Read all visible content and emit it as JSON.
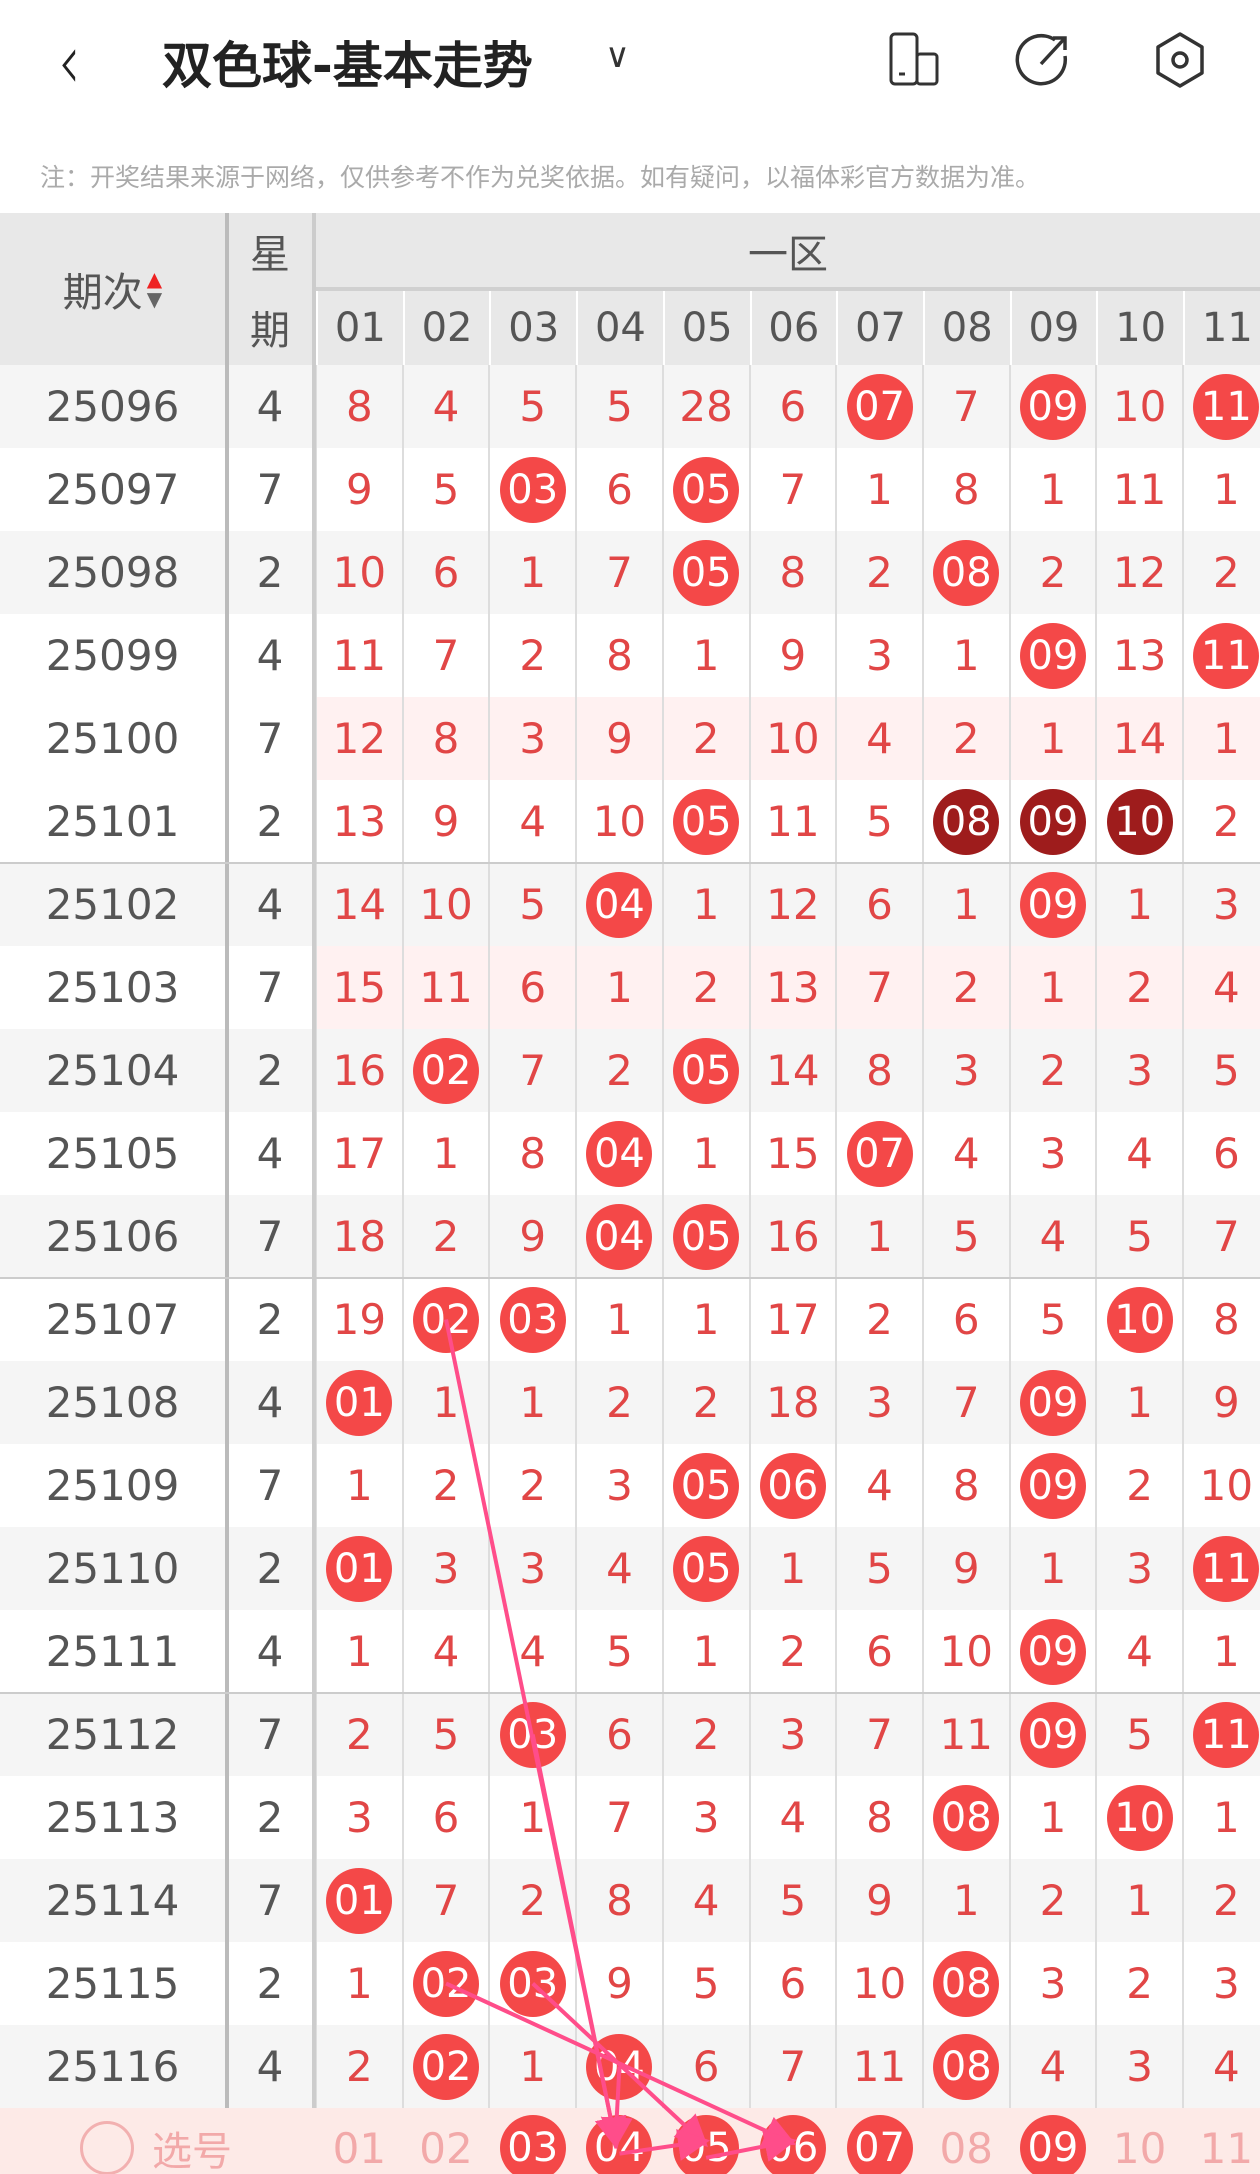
{
  "header": {
    "title": "双色球-基本走势",
    "back": "‹",
    "dropdown": "∨",
    "icons": [
      "device-icon",
      "share-icon",
      "settings-icon"
    ]
  },
  "note": "注：开奖结果来源于网络，仅供参考不作为兑奖依据。如有疑问，以福体彩官方数据为准。",
  "table": {
    "col_period": "期次",
    "col_week_1": "星",
    "col_week_2": "期",
    "zone": "一区",
    "numbers": [
      "01",
      "02",
      "03",
      "04",
      "05",
      "06",
      "07",
      "08",
      "09",
      "10",
      "11"
    ],
    "rows": [
      {
        "period": "25096",
        "week": "4",
        "bg": "gray",
        "cells": [
          "8",
          "4",
          "5",
          "5",
          "28",
          "6",
          "*07",
          "7",
          "*09",
          "10",
          "*11"
        ]
      },
      {
        "period": "25097",
        "week": "7",
        "bg": "white",
        "cells": [
          "9",
          "5",
          "*03",
          "6",
          "*05",
          "7",
          "1",
          "8",
          "1",
          "11",
          "1"
        ]
      },
      {
        "period": "25098",
        "week": "2",
        "bg": "gray",
        "cells": [
          "10",
          "6",
          "1",
          "7",
          "*05",
          "8",
          "2",
          "*08",
          "2",
          "12",
          "2"
        ]
      },
      {
        "period": "25099",
        "week": "4",
        "bg": "white",
        "cells": [
          "11",
          "7",
          "2",
          "8",
          "1",
          "9",
          "3",
          "1",
          "*09",
          "13",
          "*11"
        ]
      },
      {
        "period": "25100",
        "week": "7",
        "bg": "pink",
        "cells": [
          "12",
          "8",
          "3",
          "9",
          "2",
          "10",
          "4",
          "2",
          "1",
          "14",
          "1"
        ]
      },
      {
        "period": "25101",
        "week": "2",
        "bg": "white",
        "cells": [
          "13",
          "9",
          "4",
          "10",
          "*05",
          "11",
          "5",
          "#08",
          "#09",
          "#10",
          "2"
        ]
      },
      {
        "period": "25102",
        "week": "4",
        "bg": "gray",
        "cells": [
          "14",
          "10",
          "5",
          "*04",
          "1",
          "12",
          "6",
          "1",
          "*09",
          "1",
          "3"
        ]
      },
      {
        "period": "25103",
        "week": "7",
        "bg": "pink",
        "cells": [
          "15",
          "11",
          "6",
          "1",
          "2",
          "13",
          "7",
          "2",
          "1",
          "2",
          "4"
        ]
      },
      {
        "period": "25104",
        "week": "2",
        "bg": "gray",
        "cells": [
          "16",
          "*02",
          "7",
          "2",
          "*05",
          "14",
          "8",
          "3",
          "2",
          "3",
          "5"
        ]
      },
      {
        "period": "25105",
        "week": "4",
        "bg": "white",
        "cells": [
          "17",
          "1",
          "8",
          "*04",
          "1",
          "15",
          "*07",
          "4",
          "3",
          "4",
          "6"
        ]
      },
      {
        "period": "25106",
        "week": "7",
        "bg": "gray",
        "cells": [
          "18",
          "2",
          "9",
          "*04",
          "*05",
          "16",
          "1",
          "5",
          "4",
          "5",
          "7"
        ]
      },
      {
        "period": "25107",
        "week": "2",
        "bg": "white",
        "cells": [
          "19",
          "*02",
          "*03",
          "1",
          "1",
          "17",
          "2",
          "6",
          "5",
          "*10",
          "8"
        ]
      },
      {
        "period": "25108",
        "week": "4",
        "bg": "gray",
        "cells": [
          "*01",
          "1",
          "1",
          "2",
          "2",
          "18",
          "3",
          "7",
          "*09",
          "1",
          "9"
        ]
      },
      {
        "period": "25109",
        "week": "7",
        "bg": "white",
        "cells": [
          "1",
          "2",
          "2",
          "3",
          "*05",
          "*06",
          "4",
          "8",
          "*09",
          "2",
          "10"
        ]
      },
      {
        "period": "25110",
        "week": "2",
        "bg": "gray",
        "cells": [
          "*01",
          "3",
          "3",
          "4",
          "*05",
          "1",
          "5",
          "9",
          "1",
          "3",
          "*11"
        ]
      },
      {
        "period": "25111",
        "week": "4",
        "bg": "white",
        "cells": [
          "1",
          "4",
          "4",
          "5",
          "1",
          "2",
          "6",
          "10",
          "*09",
          "4",
          "1"
        ]
      },
      {
        "period": "25112",
        "week": "7",
        "bg": "gray",
        "cells": [
          "2",
          "5",
          "*03",
          "6",
          "2",
          "3",
          "7",
          "11",
          "*09",
          "5",
          "*11"
        ]
      },
      {
        "period": "25113",
        "week": "2",
        "bg": "white",
        "cells": [
          "3",
          "6",
          "1",
          "7",
          "3",
          "4",
          "8",
          "*08",
          "1",
          "*10",
          "1"
        ]
      },
      {
        "period": "25114",
        "week": "7",
        "bg": "gray",
        "cells": [
          "*01",
          "7",
          "2",
          "8",
          "4",
          "5",
          "9",
          "1",
          "2",
          "1",
          "2"
        ]
      },
      {
        "period": "25115",
        "week": "2",
        "bg": "white",
        "cells": [
          "1",
          "*02",
          "*03",
          "9",
          "5",
          "6",
          "10",
          "*08",
          "3",
          "2",
          "3"
        ]
      },
      {
        "period": "25116",
        "week": "4",
        "bg": "gray",
        "cells": [
          "2",
          "*02",
          "1",
          "*04",
          "6",
          "7",
          "11",
          "*08",
          "4",
          "3",
          "4"
        ]
      }
    ],
    "select": {
      "label": "选号",
      "cells": [
        "01",
        "02",
        "*03",
        "*04",
        "*05",
        "*06",
        "*07",
        "08",
        "*09",
        "10",
        "11"
      ]
    }
  },
  "colors": {
    "ball": "#f44848",
    "ball_dark": "#9e1c1c",
    "number": "#e14646",
    "arrow": "#ff4d8a"
  }
}
